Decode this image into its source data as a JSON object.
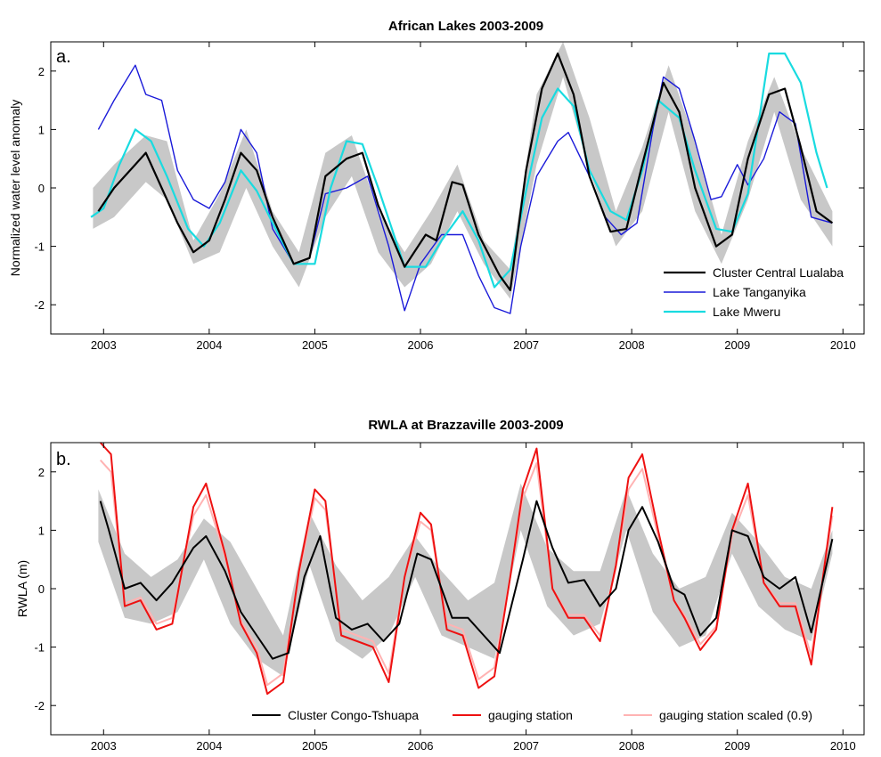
{
  "colors": {
    "band": "#c8c8c8",
    "black": "#000000",
    "blue": "#1a1ad9",
    "cyan": "#19dbe0",
    "red": "#ee1111",
    "pink": "#ffb3b3"
  },
  "chart_data": [
    {
      "type": "line",
      "panel_label": "a.",
      "title": "African Lakes 2003-2009",
      "ylabel": "Normalized water level anomaly",
      "xlabel": "",
      "xlim": [
        2002.5,
        2010.2
      ],
      "ylim": [
        -2.5,
        2.5
      ],
      "x_ticks": [
        2003,
        2004,
        2005,
        2006,
        2007,
        2008,
        2009,
        2010
      ],
      "y_ticks": [
        -2,
        -1,
        0,
        1,
        2
      ],
      "legend_position": "bottom-right",
      "band": {
        "x": [
          2002.9,
          2003.1,
          2003.4,
          2003.6,
          2003.85,
          2004.1,
          2004.35,
          2004.6,
          2004.85,
          2005.1,
          2005.35,
          2005.6,
          2005.85,
          2006.1,
          2006.35,
          2006.6,
          2006.85,
          2007.1,
          2007.35,
          2007.6,
          2007.85,
          2008.1,
          2008.35,
          2008.6,
          2008.85,
          2009.1,
          2009.35,
          2009.6,
          2009.9
        ],
        "upper": [
          0.0,
          0.4,
          0.9,
          0.8,
          -0.9,
          -0.1,
          1.0,
          -0.4,
          -1.1,
          0.6,
          0.9,
          -0.4,
          -1.1,
          -0.4,
          0.4,
          -0.9,
          -1.4,
          1.6,
          2.5,
          1.2,
          -0.4,
          0.7,
          2.1,
          0.8,
          -0.8,
          0.8,
          1.9,
          0.7,
          -0.4
        ],
        "lower": [
          -0.7,
          -0.5,
          0.1,
          -0.2,
          -1.3,
          -1.1,
          0.0,
          -1.0,
          -1.7,
          -0.5,
          0.2,
          -1.1,
          -1.7,
          -1.3,
          -0.4,
          -1.3,
          -1.9,
          0.4,
          1.9,
          0.3,
          -1.0,
          -0.4,
          1.3,
          -0.4,
          -1.3,
          -0.2,
          1.3,
          -0.2,
          -1.0
        ]
      },
      "series": [
        {
          "name": "Cluster Central Lualaba",
          "color": "#000000",
          "x": [
            2002.95,
            2003.1,
            2003.3,
            2003.4,
            2003.55,
            2003.7,
            2003.85,
            2004.0,
            2004.15,
            2004.3,
            2004.45,
            2004.6,
            2004.8,
            2004.95,
            2005.1,
            2005.3,
            2005.45,
            2005.6,
            2005.85,
            2006.05,
            2006.15,
            2006.3,
            2006.4,
            2006.55,
            2006.75,
            2006.85,
            2007.0,
            2007.15,
            2007.3,
            2007.45,
            2007.6,
            2007.8,
            2007.95,
            2008.1,
            2008.3,
            2008.45,
            2008.6,
            2008.8,
            2008.95,
            2009.1,
            2009.3,
            2009.45,
            2009.6,
            2009.75,
            2009.9
          ],
          "y": [
            -0.4,
            0.0,
            0.4,
            0.6,
            0.0,
            -0.6,
            -1.1,
            -0.9,
            -0.2,
            0.6,
            0.3,
            -0.5,
            -1.3,
            -1.2,
            0.2,
            0.5,
            0.6,
            -0.3,
            -1.35,
            -0.8,
            -0.9,
            0.1,
            0.05,
            -0.8,
            -1.5,
            -1.75,
            0.3,
            1.7,
            2.3,
            1.6,
            0.2,
            -0.75,
            -0.7,
            0.4,
            1.8,
            1.3,
            0.0,
            -1.0,
            -0.8,
            0.5,
            1.6,
            1.7,
            0.7,
            -0.4,
            -0.6
          ]
        },
        {
          "name": "Lake Tanganyika",
          "color": "#1a1ad9",
          "x": [
            2002.95,
            2003.1,
            2003.3,
            2003.4,
            2003.55,
            2003.7,
            2003.85,
            2004.0,
            2004.15,
            2004.3,
            2004.45,
            2004.6,
            2004.8,
            2004.95,
            2005.1,
            2005.3,
            2005.5,
            2005.7,
            2005.85,
            2006.0,
            2006.2,
            2006.4,
            2006.55,
            2006.7,
            2006.85,
            2006.95,
            2007.1,
            2007.3,
            2007.4,
            2007.6,
            2007.75,
            2007.9,
            2008.05,
            2008.2,
            2008.3,
            2008.45,
            2008.6,
            2008.75,
            2008.85,
            2009.0,
            2009.1,
            2009.25,
            2009.4,
            2009.55,
            2009.7,
            2009.9
          ],
          "y": [
            1.0,
            1.5,
            2.1,
            1.6,
            1.5,
            0.3,
            -0.2,
            -0.35,
            0.1,
            1.0,
            0.6,
            -0.7,
            -1.3,
            -1.2,
            -0.1,
            0.0,
            0.2,
            -1.0,
            -2.1,
            -1.3,
            -0.8,
            -0.8,
            -1.5,
            -2.05,
            -2.15,
            -1.0,
            0.2,
            0.8,
            0.95,
            0.2,
            -0.5,
            -0.8,
            -0.6,
            1.0,
            1.9,
            1.7,
            0.8,
            -0.2,
            -0.15,
            0.4,
            0.05,
            0.5,
            1.3,
            1.1,
            -0.5,
            -0.6
          ]
        },
        {
          "name": "Lake Mweru",
          "color": "#19dbe0",
          "x": [
            2002.88,
            2003.0,
            2003.15,
            2003.3,
            2003.45,
            2003.6,
            2003.8,
            2003.95,
            2004.1,
            2004.3,
            2004.45,
            2004.6,
            2004.8,
            2005.0,
            2005.15,
            2005.3,
            2005.45,
            2005.6,
            2005.85,
            2006.05,
            2006.2,
            2006.4,
            2006.55,
            2006.7,
            2006.85,
            2007.0,
            2007.15,
            2007.3,
            2007.45,
            2007.6,
            2007.8,
            2007.95,
            2008.1,
            2008.25,
            2008.45,
            2008.6,
            2008.8,
            2008.95,
            2009.1,
            2009.3,
            2009.45,
            2009.6,
            2009.75,
            2009.85
          ],
          "y": [
            -0.5,
            -0.35,
            0.4,
            1.0,
            0.8,
            0.2,
            -0.7,
            -1.0,
            -0.6,
            0.3,
            -0.05,
            -0.6,
            -1.3,
            -1.3,
            0.0,
            0.8,
            0.75,
            0.0,
            -1.35,
            -1.35,
            -0.9,
            -0.4,
            -0.9,
            -1.7,
            -1.4,
            -0.05,
            1.2,
            1.7,
            1.4,
            0.3,
            -0.4,
            -0.55,
            0.3,
            1.5,
            1.2,
            0.3,
            -0.7,
            -0.75,
            -0.1,
            2.3,
            2.3,
            1.8,
            0.6,
            0.0
          ]
        }
      ]
    },
    {
      "type": "line",
      "panel_label": "b.",
      "title": "RWLA at Brazzaville 2003-2009",
      "ylabel": "RWLA (m)",
      "xlabel": "",
      "xlim": [
        2002.5,
        2010.2
      ],
      "ylim": [
        -2.5,
        2.5
      ],
      "x_ticks": [
        2003,
        2004,
        2005,
        2006,
        2007,
        2008,
        2009,
        2010
      ],
      "y_ticks": [
        -2,
        -1,
        0,
        1,
        2
      ],
      "legend_position": "bottom",
      "band": {
        "x": [
          2002.95,
          2003.2,
          2003.45,
          2003.7,
          2003.95,
          2004.2,
          2004.45,
          2004.7,
          2004.95,
          2005.2,
          2005.45,
          2005.7,
          2005.95,
          2006.2,
          2006.45,
          2006.7,
          2006.95,
          2007.2,
          2007.45,
          2007.7,
          2007.95,
          2008.2,
          2008.45,
          2008.7,
          2008.95,
          2009.2,
          2009.45,
          2009.7,
          2009.9
        ],
        "upper": [
          1.7,
          0.6,
          0.2,
          0.5,
          1.2,
          0.8,
          0.0,
          -0.8,
          1.3,
          0.4,
          -0.2,
          0.2,
          0.9,
          0.3,
          -0.2,
          0.1,
          1.8,
          0.7,
          0.3,
          0.3,
          1.7,
          0.6,
          0.0,
          0.2,
          1.3,
          0.8,
          0.2,
          0.0,
          1.0
        ],
        "lower": [
          0.8,
          -0.5,
          -0.6,
          -0.4,
          0.5,
          -0.6,
          -1.2,
          -1.5,
          0.4,
          -0.9,
          -1.2,
          -0.8,
          0.2,
          -0.8,
          -1.0,
          -1.2,
          1.0,
          -0.3,
          -0.8,
          -0.6,
          1.0,
          -0.4,
          -1.0,
          -0.8,
          0.6,
          -0.3,
          -0.7,
          -0.9,
          0.6
        ]
      },
      "series": [
        {
          "name": "Cluster Congo-Tshuapa",
          "color": "#000000",
          "x": [
            2002.97,
            2003.05,
            2003.2,
            2003.35,
            2003.5,
            2003.65,
            2003.85,
            2003.97,
            2004.15,
            2004.3,
            2004.45,
            2004.6,
            2004.75,
            2004.9,
            2005.05,
            2005.2,
            2005.35,
            2005.5,
            2005.65,
            2005.8,
            2005.97,
            2006.1,
            2006.3,
            2006.45,
            2006.6,
            2006.75,
            2006.97,
            2007.1,
            2007.25,
            2007.4,
            2007.55,
            2007.7,
            2007.85,
            2007.97,
            2008.1,
            2008.25,
            2008.4,
            2008.5,
            2008.65,
            2008.8,
            2008.95,
            2009.1,
            2009.25,
            2009.4,
            2009.55,
            2009.7,
            2009.9
          ],
          "y": [
            1.5,
            1.0,
            0.0,
            0.1,
            -0.2,
            0.1,
            0.7,
            0.9,
            0.3,
            -0.4,
            -0.8,
            -1.2,
            -1.1,
            0.2,
            0.9,
            -0.5,
            -0.7,
            -0.6,
            -0.9,
            -0.6,
            0.6,
            0.5,
            -0.5,
            -0.5,
            -0.8,
            -1.1,
            0.5,
            1.5,
            0.7,
            0.1,
            0.15,
            -0.3,
            0.0,
            1.0,
            1.4,
            0.8,
            0.0,
            -0.1,
            -0.8,
            -0.5,
            1.0,
            0.9,
            0.2,
            0.0,
            0.2,
            -0.75,
            0.85
          ]
        },
        {
          "name": "gauging station",
          "color": "#ee1111",
          "x": [
            2002.97,
            2003.07,
            2003.2,
            2003.35,
            2003.5,
            2003.65,
            2003.85,
            2003.97,
            2004.15,
            2004.3,
            2004.45,
            2004.55,
            2004.7,
            2004.85,
            2005.0,
            2005.1,
            2005.25,
            2005.4,
            2005.55,
            2005.7,
            2005.85,
            2006.0,
            2006.1,
            2006.25,
            2006.4,
            2006.55,
            2006.7,
            2006.85,
            2006.97,
            2007.1,
            2007.25,
            2007.4,
            2007.55,
            2007.7,
            2007.85,
            2007.97,
            2008.1,
            2008.25,
            2008.4,
            2008.5,
            2008.65,
            2008.8,
            2008.95,
            2009.1,
            2009.25,
            2009.4,
            2009.55,
            2009.7,
            2009.9
          ],
          "y": [
            2.5,
            2.3,
            -0.3,
            -0.2,
            -0.7,
            -0.6,
            1.4,
            1.8,
            0.6,
            -0.6,
            -1.1,
            -1.8,
            -1.6,
            0.3,
            1.7,
            1.5,
            -0.8,
            -0.9,
            -1.0,
            -1.6,
            0.2,
            1.3,
            1.1,
            -0.7,
            -0.8,
            -1.7,
            -1.5,
            0.2,
            1.7,
            2.4,
            0.0,
            -0.5,
            -0.5,
            -0.9,
            0.4,
            1.9,
            2.3,
            1.0,
            -0.2,
            -0.5,
            -1.05,
            -0.7,
            1.0,
            1.8,
            0.1,
            -0.3,
            -0.3,
            -1.3,
            1.4
          ]
        },
        {
          "name": "gauging station scaled (0.9)",
          "color": "#ffb3b3",
          "x": [
            2002.97,
            2003.07,
            2003.2,
            2003.35,
            2003.5,
            2003.65,
            2003.85,
            2003.97,
            2004.15,
            2004.3,
            2004.45,
            2004.55,
            2004.7,
            2004.85,
            2005.0,
            2005.1,
            2005.25,
            2005.4,
            2005.55,
            2005.7,
            2005.85,
            2006.0,
            2006.1,
            2006.25,
            2006.4,
            2006.55,
            2006.7,
            2006.85,
            2006.97,
            2007.1,
            2007.25,
            2007.4,
            2007.55,
            2007.7,
            2007.85,
            2007.97,
            2008.1,
            2008.25,
            2008.4,
            2008.5,
            2008.65,
            2008.8,
            2008.95,
            2009.1,
            2009.25,
            2009.4,
            2009.55,
            2009.7,
            2009.9
          ],
          "y": [
            2.2,
            2.0,
            -0.25,
            -0.15,
            -0.6,
            -0.5,
            1.25,
            1.6,
            0.55,
            -0.55,
            -1.0,
            -1.65,
            -1.45,
            0.25,
            1.55,
            1.35,
            -0.7,
            -0.8,
            -0.9,
            -1.45,
            0.2,
            1.15,
            1.0,
            -0.6,
            -0.7,
            -1.55,
            -1.35,
            0.2,
            1.55,
            2.15,
            0.0,
            -0.45,
            -0.45,
            -0.8,
            0.35,
            1.7,
            2.05,
            0.9,
            -0.2,
            -0.45,
            -0.95,
            -0.65,
            0.9,
            1.6,
            0.1,
            -0.25,
            -0.25,
            -1.15,
            1.25
          ]
        }
      ]
    }
  ]
}
